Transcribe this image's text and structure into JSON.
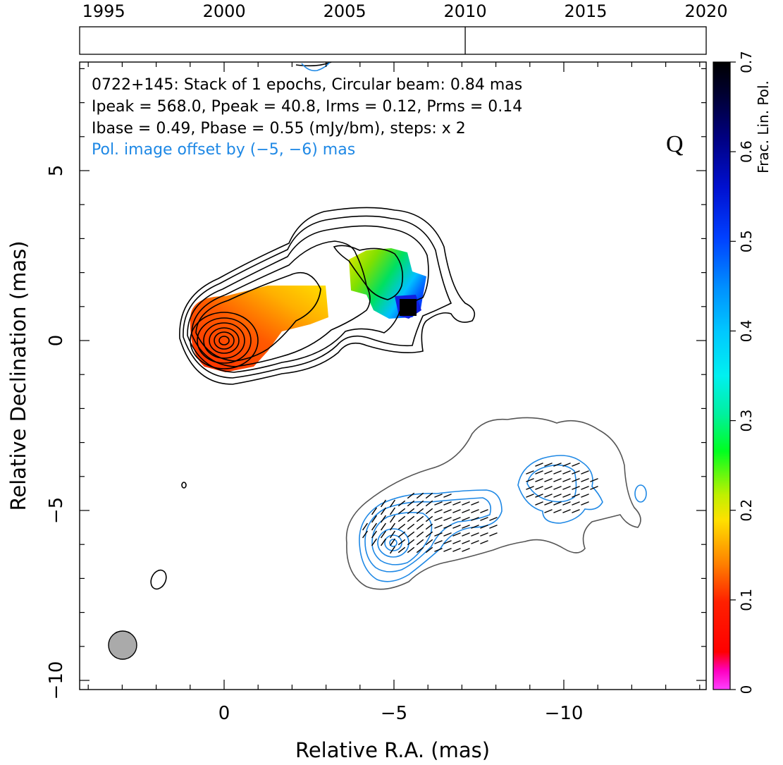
{
  "chart_data": {
    "type": "contour",
    "xlabel": "Relative R.A. (mas)",
    "ylabel": "Relative Declination (mas)",
    "xlim": [
      4,
      -14
    ],
    "ylim": [
      -10.2,
      8.1
    ],
    "x_ticks": [
      0,
      -5,
      -10
    ],
    "x_tick_labels": [
      "0",
      "−5",
      "−10"
    ],
    "y_ticks": [
      5,
      0,
      -5,
      -10
    ],
    "y_tick_labels": [
      "5",
      "0",
      "−5",
      "−10"
    ],
    "timeline": {
      "years": [
        1995,
        2000,
        2005,
        2010,
        2015,
        2020
      ],
      "range": [
        1994,
        2020
      ],
      "epochs": [
        2010
      ]
    },
    "annotations": {
      "line1": "0722+145: Stack of 1 epochs, Circular beam: 0.84 mas",
      "line2": "Ipeak = 568.0, Ppeak = 40.8, Irms = 0.12, Prms = 0.14",
      "line3": "Ibase = 0.49, Pbase = 0.55 (mJy/bm), steps: x 2",
      "line4": "Pol. image offset by (−5, −6) mas",
      "band": "Q"
    },
    "beam": {
      "ra": 3,
      "dec": -9,
      "diameter_mas": 0.84
    },
    "core": {
      "ra": 0,
      "dec": 0
    },
    "colorbar": {
      "label": "Frac. Lin. Pol.",
      "range": [
        0,
        0.7
      ],
      "ticks": [
        0,
        0.1,
        0.2,
        0.3,
        0.4,
        0.5,
        0.6,
        0.7
      ],
      "tick_labels": [
        "0",
        "0.1",
        "0.2",
        "0.3",
        "0.4",
        "0.5",
        "0.6",
        "0.7"
      ]
    },
    "colors": {
      "stokes_i_contours": "#000000",
      "polarized_offset_outer_contour": "#555555",
      "polarized_contours": "#1e88e5",
      "offset_text": "#1e88e5",
      "beam_fill": "#aaaaaa"
    },
    "grid": false
  }
}
